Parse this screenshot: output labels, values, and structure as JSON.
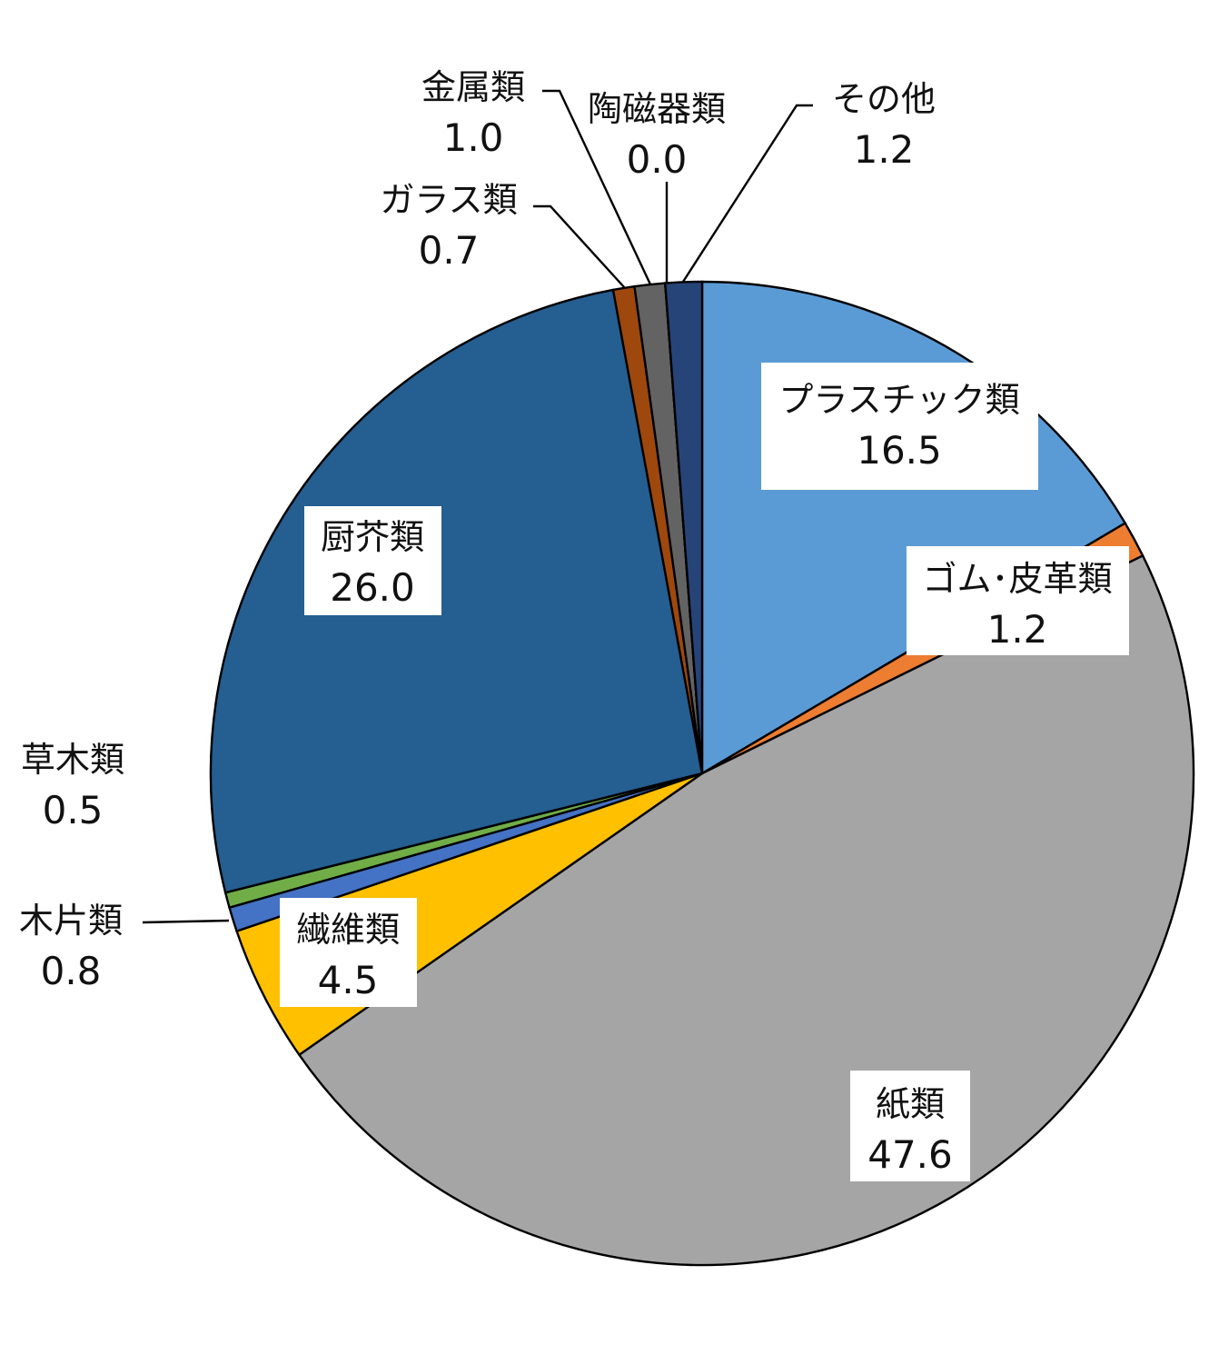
{
  "chart_data": {
    "type": "pie",
    "start_angle_deg": 0,
    "direction": "clockwise",
    "slices": [
      {
        "label": "プラスチック類",
        "value": "16.5",
        "color": "#5B9BD5"
      },
      {
        "label": "ゴム･皮革類",
        "value": "1.2",
        "color": "#ED7D31"
      },
      {
        "label": "紙類",
        "value": "47.6",
        "color": "#A5A5A5"
      },
      {
        "label": "繊維類",
        "value": "4.5",
        "color": "#FFC000"
      },
      {
        "label": "木片類",
        "value": "0.8",
        "color": "#4472C4"
      },
      {
        "label": "草木類",
        "value": "0.5",
        "color": "#70AD47"
      },
      {
        "label": "厨芥類",
        "value": "26.0",
        "color": "#255E91"
      },
      {
        "label": "ガラス類",
        "value": "0.7",
        "color": "#9E480E"
      },
      {
        "label": "金属類",
        "value": "1.0",
        "color": "#636363"
      },
      {
        "label": "陶磁器類",
        "value": "0.0",
        "color": "#997300"
      },
      {
        "label": "その他",
        "value": "1.2",
        "color": "#264478"
      }
    ]
  }
}
